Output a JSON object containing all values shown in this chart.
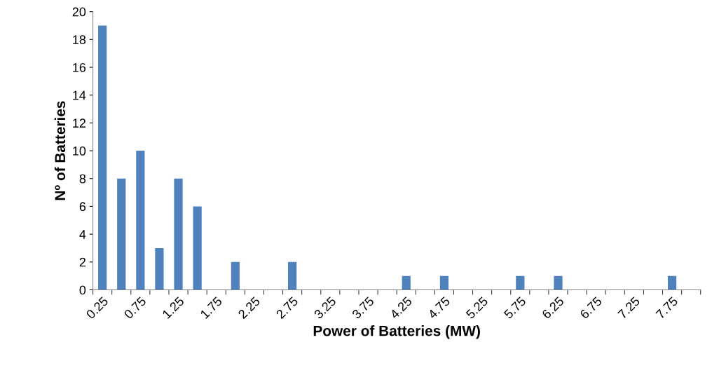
{
  "chart_data": {
    "type": "bar",
    "xlabel": "Power of Batteries (MW)",
    "ylabel": "Nº of Batteries",
    "categories": [
      "0.25",
      null,
      "0.75",
      null,
      "1.25",
      null,
      "1.75",
      null,
      "2.25",
      null,
      "2.75",
      null,
      "3.25",
      null,
      "3.75",
      null,
      "4.25",
      null,
      "4.75",
      null,
      "5.25",
      null,
      "5.75",
      null,
      "6.25",
      null,
      "6.75",
      null,
      "7.25",
      null,
      "7.75",
      null
    ],
    "values": [
      19,
      8,
      10,
      3,
      8,
      6,
      0,
      2,
      0,
      0,
      2,
      0,
      0,
      0,
      0,
      0,
      1,
      0,
      1,
      0,
      0,
      0,
      1,
      0,
      1,
      0,
      0,
      0,
      0,
      0,
      1,
      0
    ],
    "color": "#4f81bd",
    "ylim": [
      0,
      20
    ],
    "yticks": [
      0,
      2,
      4,
      6,
      8,
      10,
      12,
      14,
      16,
      18,
      20
    ],
    "grid": false,
    "legend": false
  }
}
